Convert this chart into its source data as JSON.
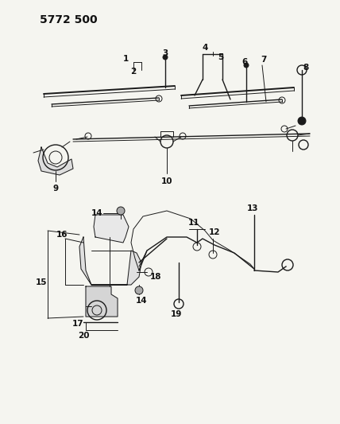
{
  "title": "5772 500",
  "bg_color": "#f5f5f0",
  "line_color": "#1a1a1a",
  "label_color": "#111111",
  "title_fontsize": 10,
  "label_fontsize": 7.5,
  "figsize": [
    4.28,
    5.33
  ],
  "dpi": 100
}
